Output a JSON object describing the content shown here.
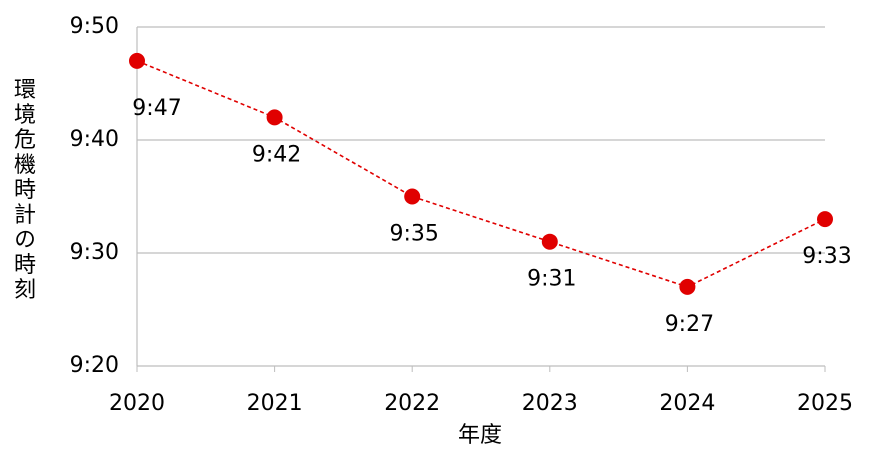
{
  "chart_data": {
    "type": "line",
    "y_label": "環境危機時計の時刻",
    "x_label": "年度",
    "x": [
      2020,
      2021,
      2022,
      2023,
      2024,
      2025
    ],
    "xlim": [
      2020,
      2025
    ],
    "xticks": [
      2020,
      2021,
      2022,
      2023,
      2024,
      2025
    ],
    "series": [
      {
        "color": "#e00000",
        "values": [
          587,
          582,
          575,
          571,
          567,
          573
        ],
        "value_labels": [
          "9:47",
          "9:42",
          "9:35",
          "9:31",
          "9:27",
          "9:33"
        ]
      }
    ],
    "ylim": [
      560,
      590
    ],
    "yticks": [
      {
        "value": 560,
        "label": "9:20"
      },
      {
        "value": 570,
        "label": "9:30"
      },
      {
        "value": 580,
        "label": "9:40"
      },
      {
        "value": 590,
        "label": "9:50"
      }
    ],
    "grid": true
  }
}
